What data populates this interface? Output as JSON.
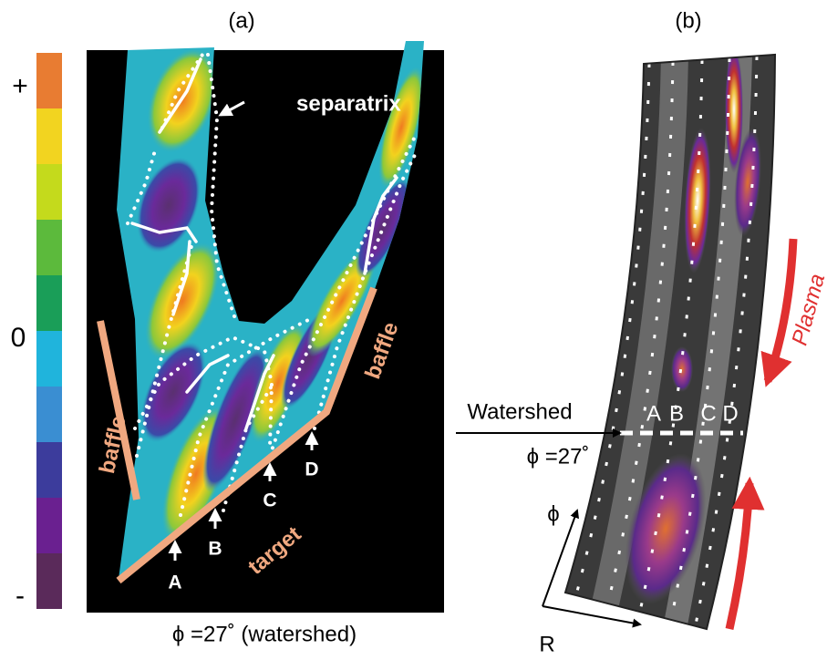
{
  "colorbar": {
    "ticks": [
      "+",
      "0",
      "-"
    ]
  },
  "panel_a": {
    "label": "(a)",
    "separatrix": "separatrix",
    "baffle_left": "baffle",
    "baffle_right": "baffle",
    "target": "target",
    "points": [
      "A",
      "B",
      "C",
      "D"
    ],
    "caption": "ϕ =27˚ (watershed)"
  },
  "panel_b": {
    "label": "(b)",
    "watershed": "Watershed",
    "angle": "ϕ =27˚",
    "points": [
      "A",
      "B",
      "C",
      "D"
    ],
    "flow": "Plasma",
    "axis_phi": "ϕ",
    "axis_r": "R"
  }
}
